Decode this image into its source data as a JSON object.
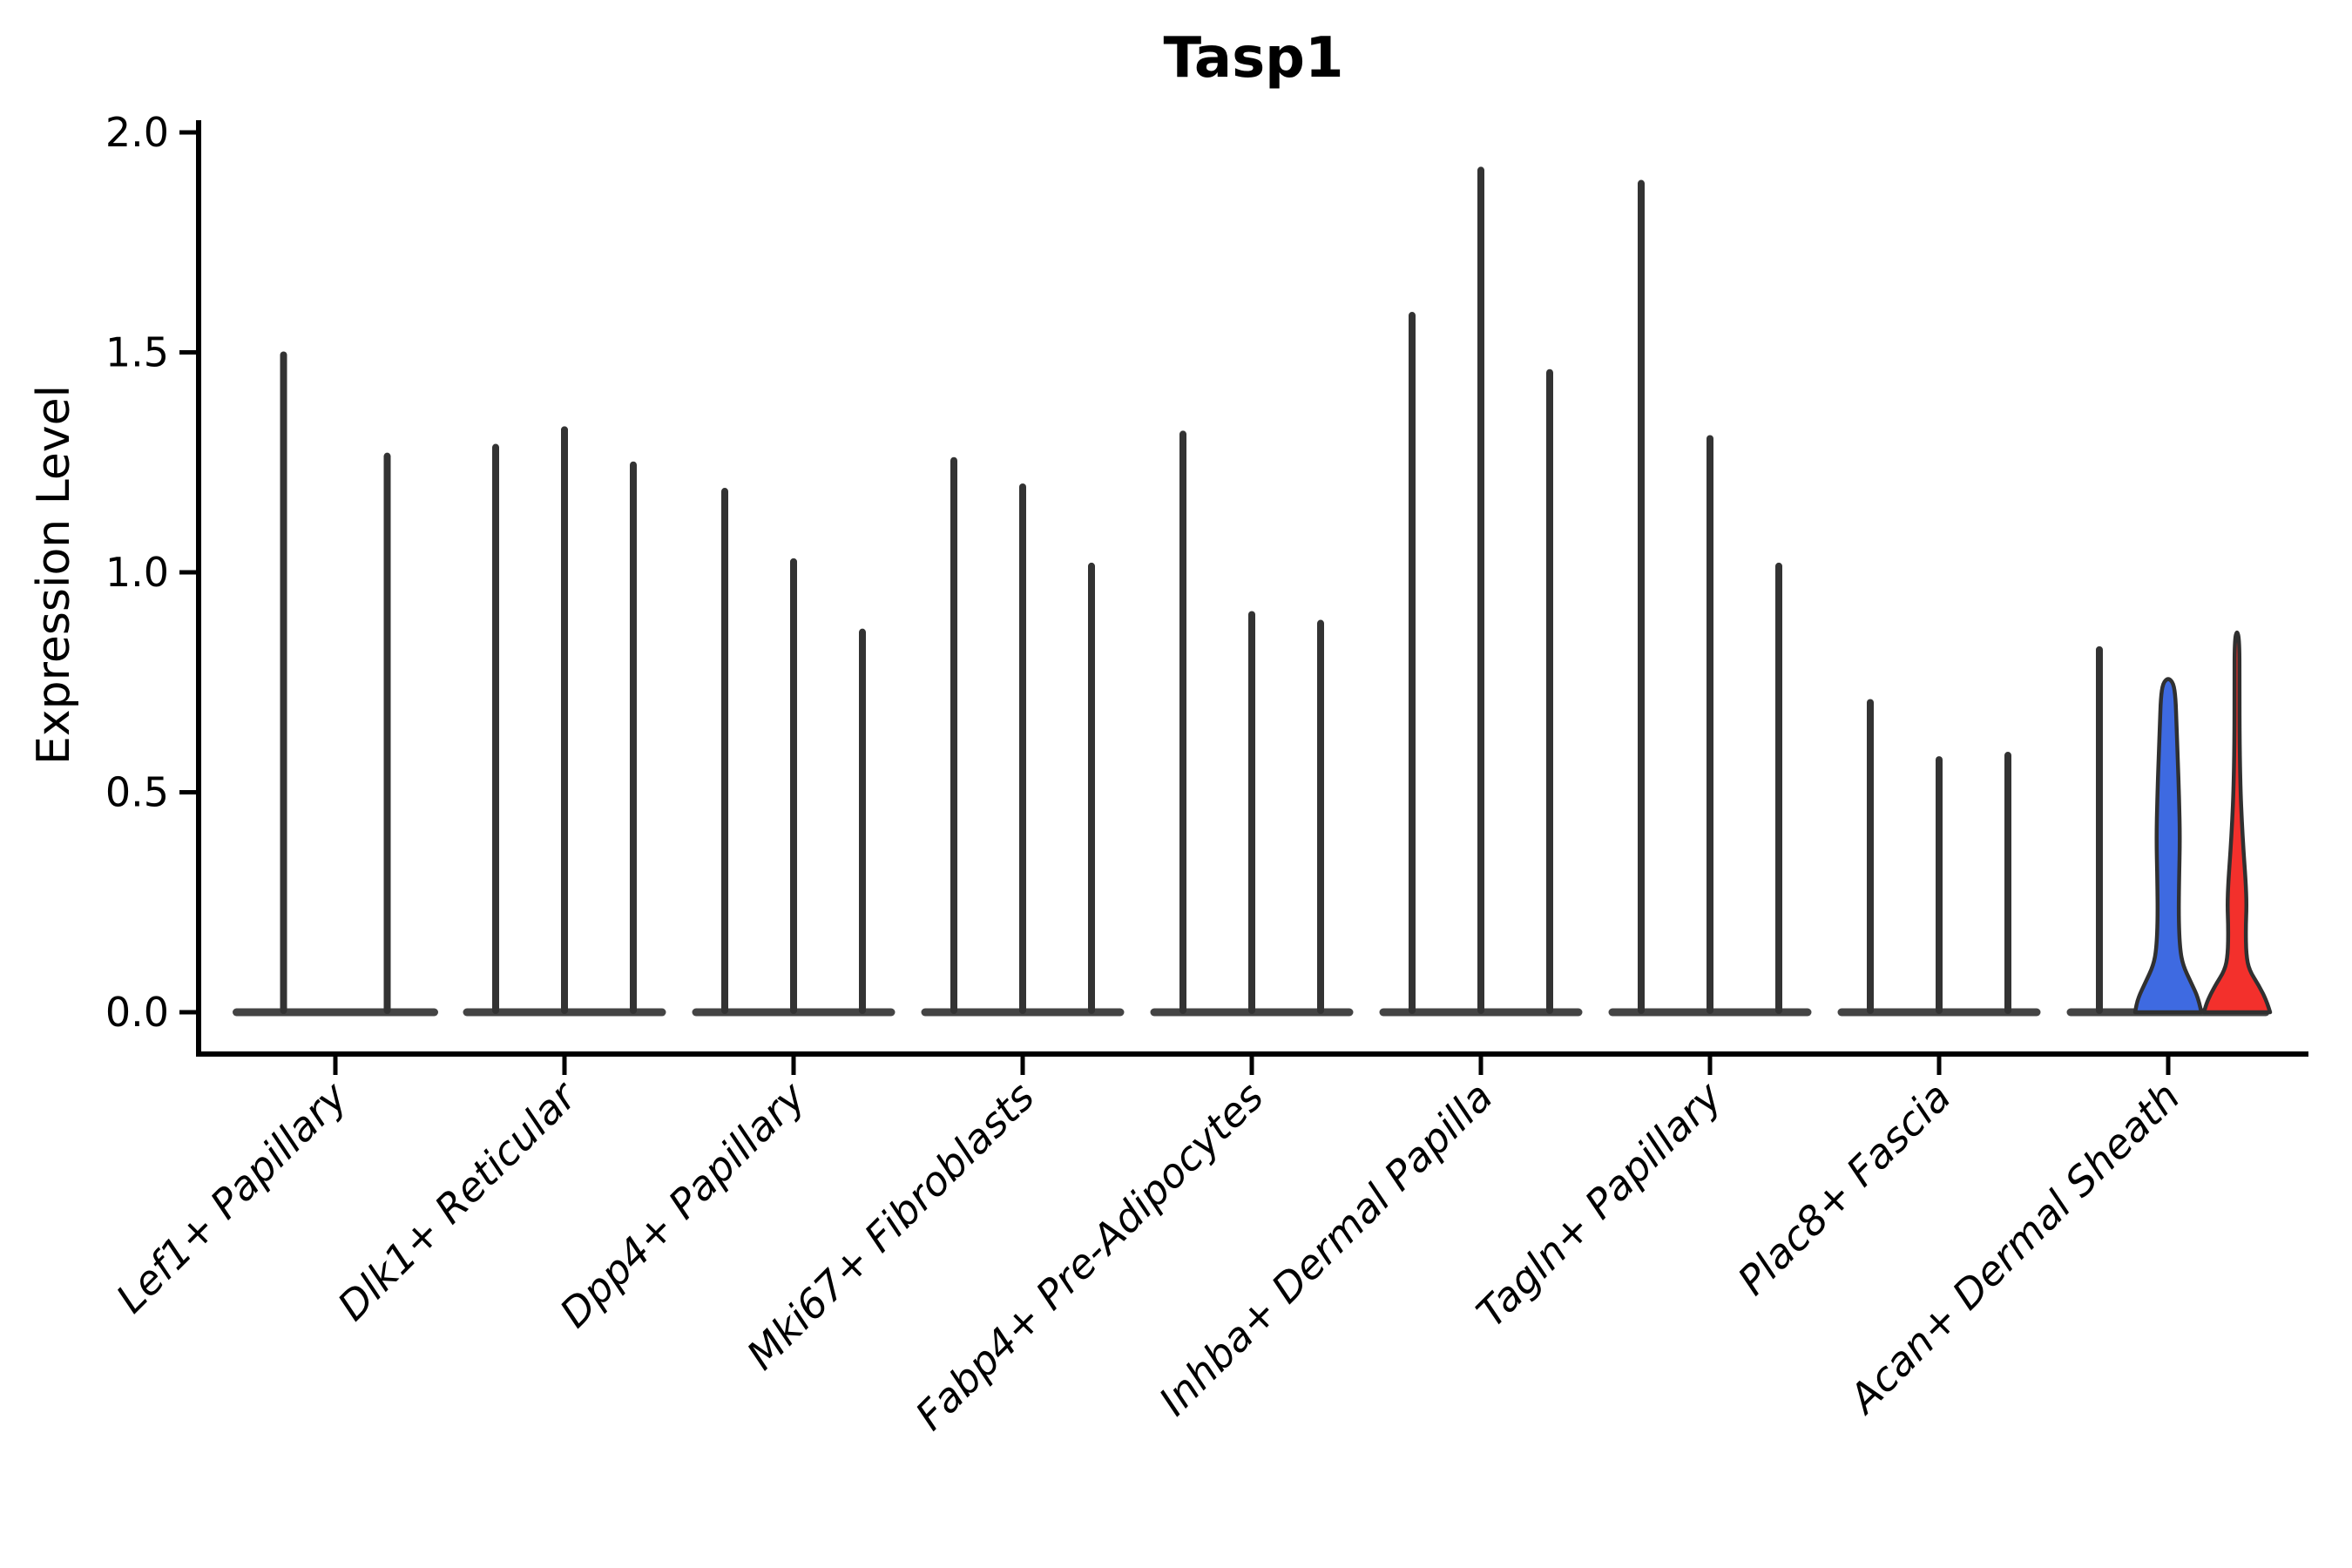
{
  "chart_data": {
    "type": "violin",
    "title": "Tasp1",
    "ylabel": "Expression Level",
    "ylim": [
      0.0,
      2.0
    ],
    "yticks": [
      0.0,
      0.5,
      1.0,
      1.5,
      2.0
    ],
    "grid": false,
    "legend": "none",
    "categories": [
      "Lef1+ Papillary",
      "Dlk1+ Reticular",
      "Dpp4+ Papillary",
      "Mki67+ Fibroblasts",
      "Fabp4+ Pre-Adipocytes",
      "Inhba+ Dermal Papilla",
      "Tagln+ Papillary",
      "Plac8+ Fascia",
      "Acan+ Dermal Sheath"
    ],
    "groups": [
      {
        "category": "Lef1+ Papillary",
        "violins": [
          {
            "max": 1.5,
            "style": "spike"
          },
          {
            "max": 1.27,
            "style": "spike"
          }
        ]
      },
      {
        "category": "Dlk1+ Reticular",
        "violins": [
          {
            "max": 1.29,
            "style": "spike"
          },
          {
            "max": 1.33,
            "style": "spike"
          },
          {
            "max": 1.25,
            "style": "spike"
          }
        ]
      },
      {
        "category": "Dpp4+ Papillary",
        "violins": [
          {
            "max": 1.19,
            "style": "spike"
          },
          {
            "max": 1.03,
            "style": "spike"
          },
          {
            "max": 0.87,
            "style": "spike"
          }
        ]
      },
      {
        "category": "Mki67+ Fibroblasts",
        "violins": [
          {
            "max": 1.26,
            "style": "spike"
          },
          {
            "max": 1.2,
            "style": "spike"
          },
          {
            "max": 1.02,
            "style": "spike"
          }
        ]
      },
      {
        "category": "Fabp4+ Pre-Adipocytes",
        "violins": [
          {
            "max": 1.32,
            "style": "spike"
          },
          {
            "max": 0.91,
            "style": "spike"
          },
          {
            "max": 0.89,
            "style": "spike"
          }
        ]
      },
      {
        "category": "Inhba+ Dermal Papilla",
        "violins": [
          {
            "max": 1.59,
            "style": "spike"
          },
          {
            "max": 1.92,
            "style": "spike"
          },
          {
            "max": 1.46,
            "style": "spike"
          }
        ]
      },
      {
        "category": "Tagln+ Papillary",
        "violins": [
          {
            "max": 1.89,
            "style": "spike"
          },
          {
            "max": 1.31,
            "style": "spike"
          },
          {
            "max": 1.02,
            "style": "spike"
          }
        ]
      },
      {
        "category": "Plac8+ Fascia",
        "violins": [
          {
            "max": 0.71,
            "style": "spike"
          },
          {
            "max": 0.58,
            "style": "spike"
          },
          {
            "max": 0.59,
            "style": "spike"
          }
        ]
      },
      {
        "category": "Acan+ Dermal Sheath",
        "violins": [
          {
            "max": 0.83,
            "style": "spike"
          },
          {
            "max": 0.76,
            "style": "body",
            "color": "#3E6AE1"
          },
          {
            "max": 0.87,
            "style": "body-tail",
            "color": "#F3302C",
            "body_top": 0.47
          }
        ]
      }
    ],
    "colors": {
      "axis": "#000000",
      "spike": "#333333",
      "violin_outline": "#303030",
      "blue_violin": "#3E6AE1",
      "red_violin": "#F3302C",
      "background": "#ffffff"
    }
  }
}
